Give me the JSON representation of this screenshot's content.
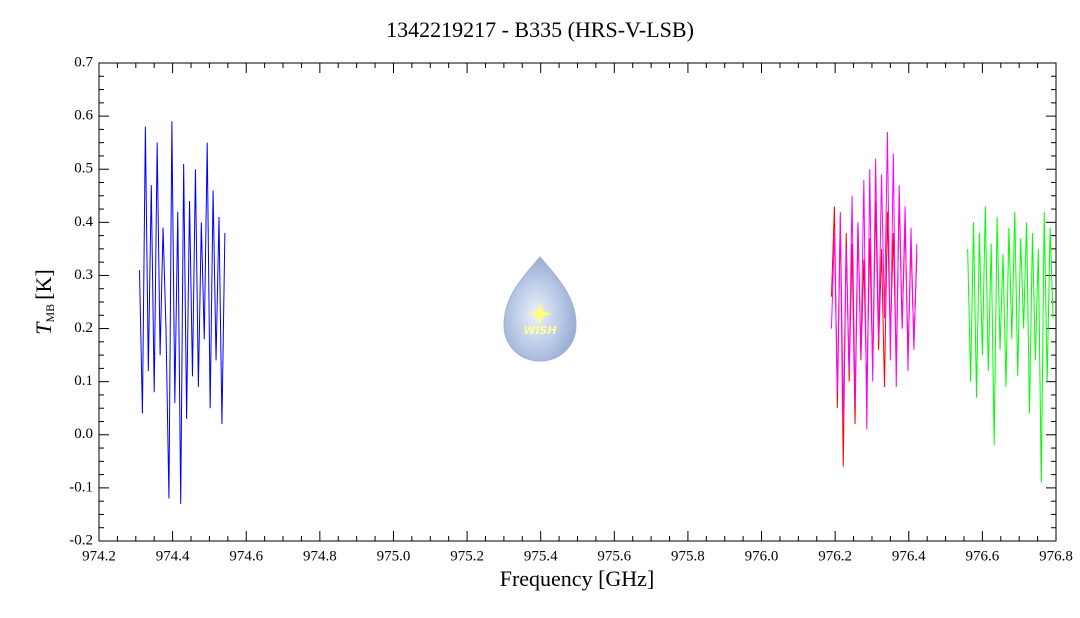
{
  "chart_data": {
    "type": "line",
    "title": "1342219217 - B335 (HRS-V-LSB)",
    "xlabel": "Frequency [GHz]",
    "ylabel": "T",
    "ylabel_sub": "MB",
    "ylabel_unit": "[K]",
    "logo_text": "WISH",
    "xlim": [
      974.2,
      976.8
    ],
    "ylim": [
      -0.2,
      0.7
    ],
    "xticks": [
      974.2,
      974.4,
      974.6,
      974.8,
      {
        "value": 975,
        "label": "975.0"
      },
      975.2,
      975.4,
      975.6,
      975.8,
      {
        "value": 976,
        "label": "976.0"
      },
      976.2,
      976.4,
      976.6,
      976.8
    ],
    "yticks": [
      -0.2,
      -0.1,
      {
        "value": 0,
        "label": "0.0"
      },
      0.1,
      0.2,
      0.3,
      0.4,
      0.5,
      0.6,
      0.7
    ],
    "series": [
      {
        "color": "#0000ff",
        "x": [
          974.31,
          974.318,
          974.326,
          974.334,
          974.342,
          974.35,
          974.358,
          974.366,
          974.374,
          974.382,
          974.39,
          974.398,
          974.406,
          974.414,
          974.422,
          974.43,
          974.438,
          974.446,
          974.454,
          974.462,
          974.47,
          974.478,
          974.486,
          974.494,
          974.502,
          974.51,
          974.518,
          974.526,
          974.534,
          974.542
        ],
        "values": [
          0.31,
          0.04,
          0.58,
          0.12,
          0.47,
          0.08,
          0.55,
          0.15,
          0.39,
          0.2,
          -0.12,
          0.59,
          0.06,
          0.42,
          -0.13,
          0.51,
          0.03,
          0.44,
          0.11,
          0.5,
          0.09,
          0.4,
          0.18,
          0.55,
          0.05,
          0.46,
          0.14,
          0.41,
          0.02,
          0.38
        ]
      },
      {
        "color": "#ff0000",
        "x": [
          976.19,
          976.198,
          976.206,
          976.214,
          976.222,
          976.23,
          976.238,
          976.246,
          976.254,
          976.262,
          976.27,
          976.278,
          976.286,
          976.294,
          976.302,
          976.31,
          976.318,
          976.326,
          976.334,
          976.342,
          976.35,
          976.358,
          976.366,
          976.374,
          976.382,
          976.39,
          976.398,
          976.406,
          976.414,
          976.422
        ],
        "values": [
          0.26,
          0.43,
          0.05,
          0.41,
          -0.06,
          0.38,
          0.1,
          0.36,
          0.02,
          0.4,
          0.14,
          0.33,
          0.08,
          0.37,
          0.12,
          0.44,
          0.16,
          0.35,
          0.09,
          0.42,
          0.18,
          0.38,
          0.13,
          0.45,
          0.2,
          0.4,
          0.15,
          0.36,
          0.17,
          0.34
        ]
      },
      {
        "color": "#ff00ff",
        "x": [
          976.19,
          976.198,
          976.206,
          976.214,
          976.222,
          976.23,
          976.238,
          976.246,
          976.254,
          976.262,
          976.27,
          976.278,
          976.286,
          976.294,
          976.302,
          976.31,
          976.318,
          976.326,
          976.334,
          976.342,
          976.35,
          976.358,
          976.366,
          976.374,
          976.382,
          976.39,
          976.398,
          976.406,
          976.414,
          976.422
        ],
        "values": [
          0.2,
          0.38,
          0.08,
          0.42,
          0.03,
          0.35,
          0.12,
          0.45,
          0.06,
          0.4,
          0.15,
          0.48,
          0.01,
          0.5,
          0.1,
          0.52,
          0.18,
          0.49,
          0.22,
          0.57,
          0.14,
          0.53,
          0.09,
          0.47,
          0.2,
          0.43,
          0.12,
          0.39,
          0.16,
          0.36
        ]
      },
      {
        "color": "#00ff00",
        "x": [
          976.56,
          976.568,
          976.576,
          976.584,
          976.592,
          976.6,
          976.608,
          976.616,
          976.624,
          976.632,
          976.64,
          976.648,
          976.656,
          976.664,
          976.672,
          976.68,
          976.688,
          976.696,
          976.704,
          976.712,
          976.72,
          976.728,
          976.736,
          976.744,
          976.752,
          976.76,
          976.768,
          976.776,
          976.784,
          976.792
        ],
        "values": [
          0.35,
          0.1,
          0.4,
          0.07,
          0.38,
          0.15,
          0.43,
          0.12,
          0.36,
          -0.02,
          0.41,
          0.16,
          0.34,
          0.09,
          0.39,
          0.18,
          0.42,
          0.11,
          0.37,
          0.2,
          0.4,
          0.04,
          0.38,
          0.14,
          0.35,
          -0.09,
          0.42,
          0.1,
          0.39,
          0.22
        ]
      }
    ]
  }
}
